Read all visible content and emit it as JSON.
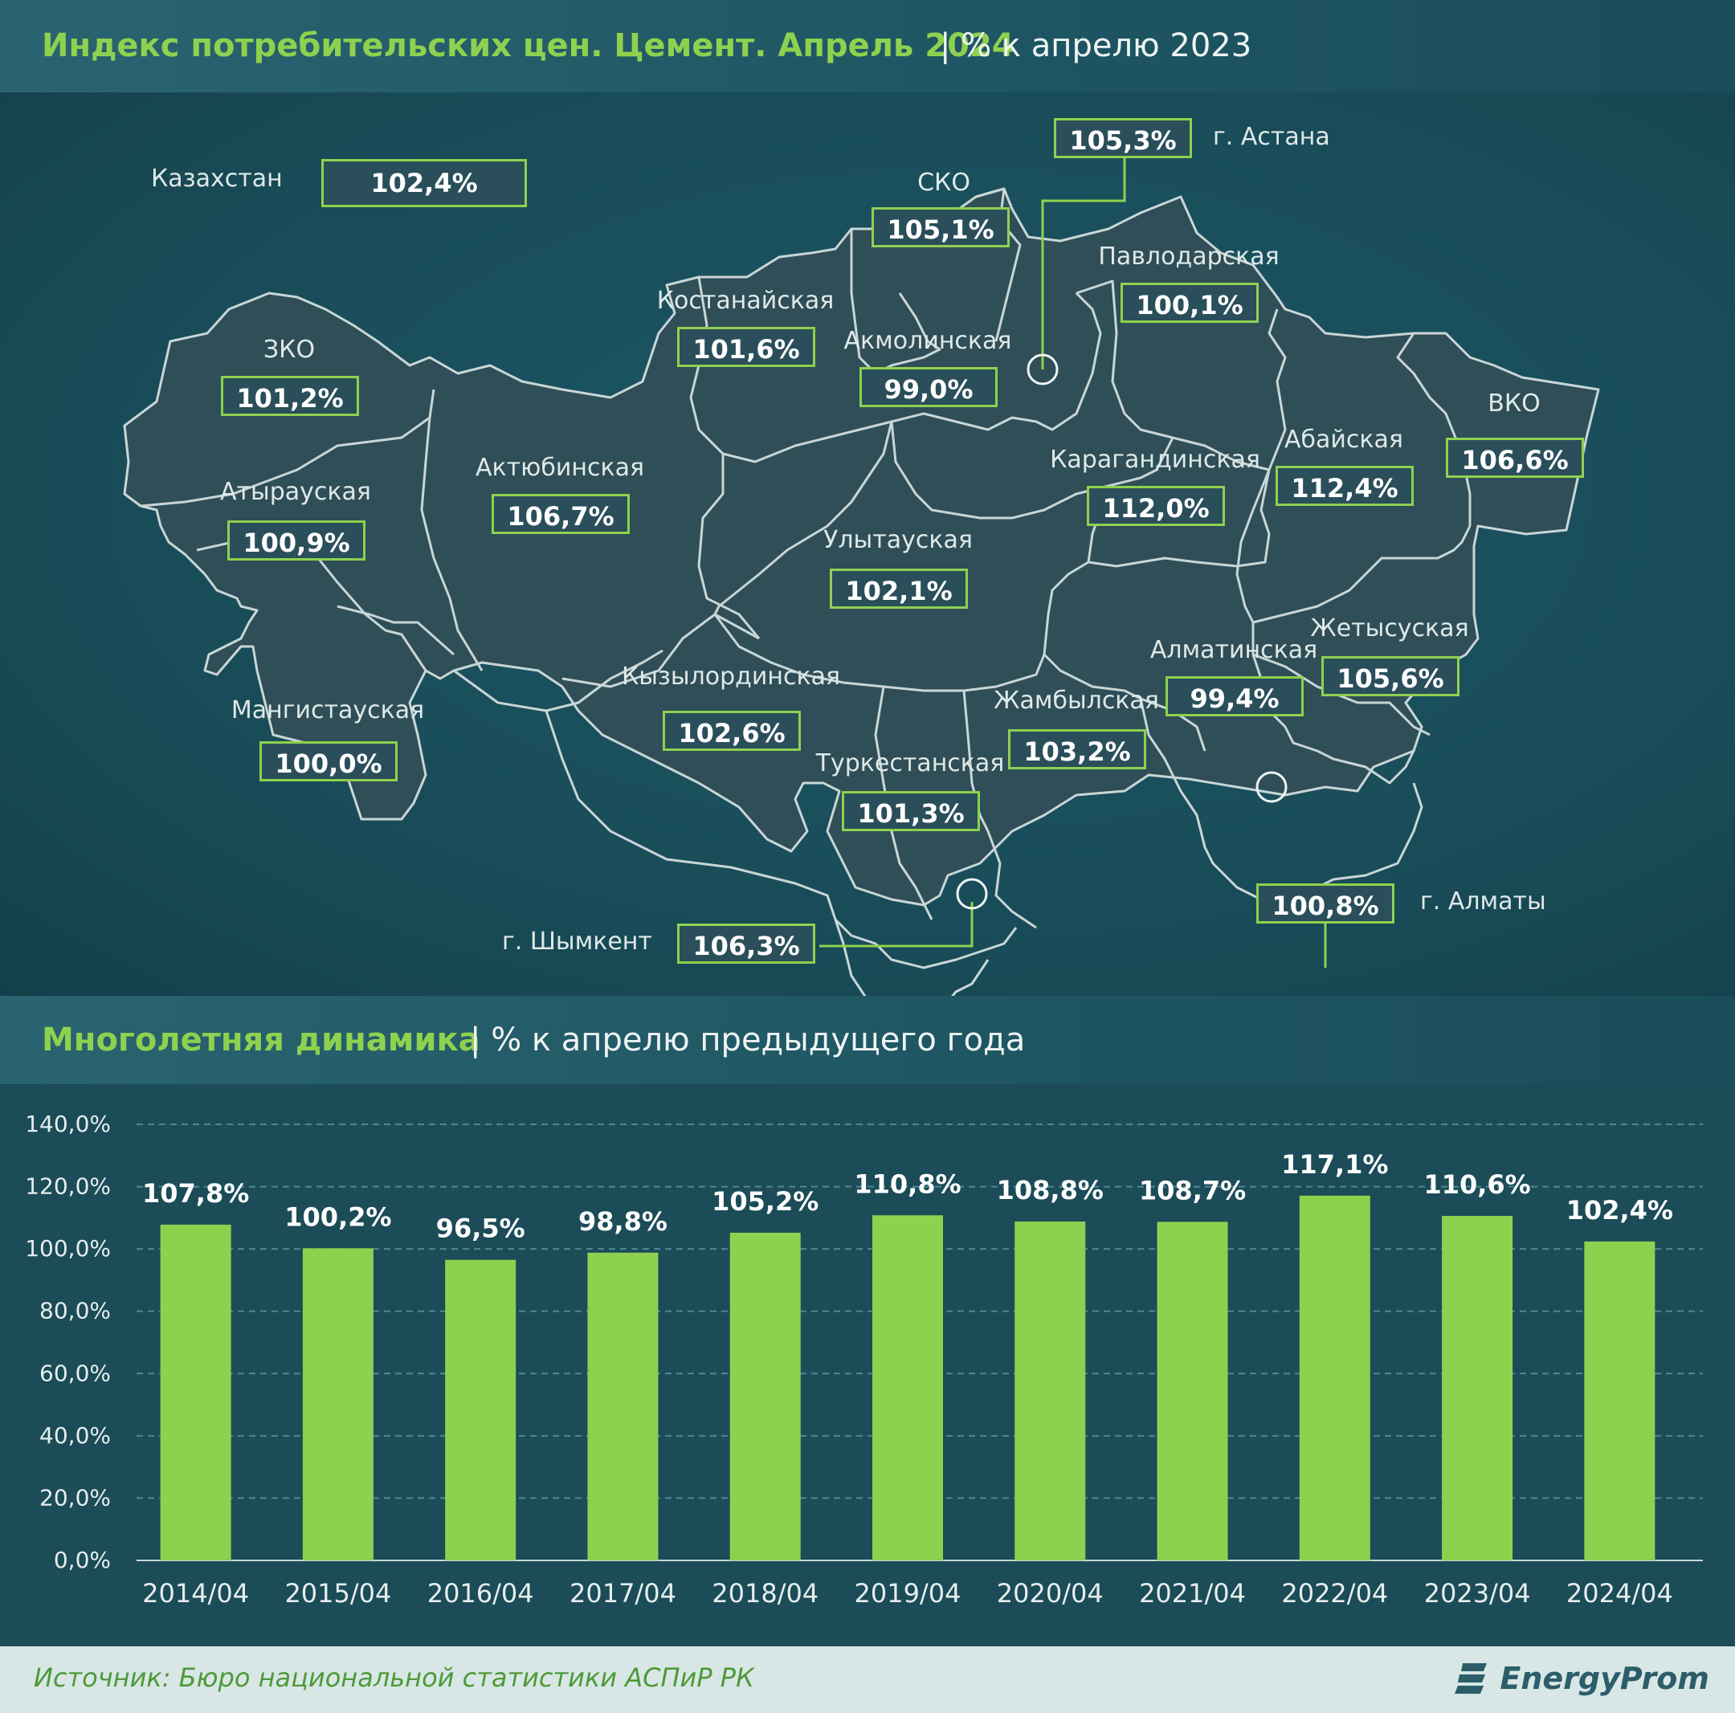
{
  "header_top": {
    "title": "Индекс потребительских цен. Цемент. Апрель 2024",
    "subtitle": "| % к апрелю 2023"
  },
  "map": {
    "kazakhstan": {
      "label": "Казахстан",
      "value": "102,4%"
    },
    "regions": {
      "astana": {
        "label": "г. Астана",
        "value": "105,3%"
      },
      "sko": {
        "label": "СКО",
        "value": "105,1%"
      },
      "pavlodar": {
        "label": "Павлодарская",
        "value": "100,1%"
      },
      "kostanay": {
        "label": "Костанайская",
        "value": "101,6%"
      },
      "akmola": {
        "label": "Акмолинская",
        "value": "99,0%"
      },
      "zko": {
        "label": "ЗКО",
        "value": "101,2%"
      },
      "atyrau": {
        "label": "Атырауская",
        "value": "100,9%"
      },
      "aktobe": {
        "label": "Актюбинская",
        "value": "106,7%"
      },
      "karaganda": {
        "label": "Карагандинская",
        "value": "112,0%"
      },
      "abai": {
        "label": "Абайская",
        "value": "112,4%"
      },
      "vko": {
        "label": "ВКО",
        "value": "106,6%"
      },
      "ulytau": {
        "label": "Улытауская",
        "value": "102,1%"
      },
      "zhetysu": {
        "label": "Жетысуская",
        "value": "105,6%"
      },
      "almaty_reg": {
        "label": "Алматинская",
        "value": "99,4%"
      },
      "kyzylorda": {
        "label": "Кызылординская",
        "value": "102,6%"
      },
      "zhambyl": {
        "label": "Жамбылская",
        "value": "103,2%"
      },
      "mangystau": {
        "label": "Мангистауская",
        "value": "100,0%"
      },
      "turkestan": {
        "label": "Туркестанская",
        "value": "101,3%"
      },
      "almaty_city": {
        "label": "г. Алматы",
        "value": "100,8%"
      },
      "shymkent": {
        "label": "г. Шымкент",
        "value": "106,3%"
      }
    }
  },
  "header_bottom": {
    "title": "Многолетняя динамика",
    "subtitle": "| % к апрелю предыдущего года"
  },
  "chart_data": {
    "type": "bar",
    "title": "Многолетняя динамика",
    "subtitle": "% к апрелю предыдущего года",
    "categories": [
      "2014/04",
      "2015/04",
      "2016/04",
      "2017/04",
      "2018/04",
      "2019/04",
      "2020/04",
      "2021/04",
      "2022/04",
      "2023/04",
      "2024/04"
    ],
    "values": [
      107.8,
      100.2,
      96.5,
      98.8,
      105.2,
      110.8,
      108.8,
      108.7,
      117.1,
      110.6,
      102.4
    ],
    "value_labels": [
      "107,8%",
      "100,2%",
      "96,5%",
      "98,8%",
      "105,2%",
      "110,8%",
      "108,8%",
      "108,7%",
      "117,1%",
      "110,6%",
      "102,4%"
    ],
    "ylim": [
      0,
      140
    ],
    "yticks": [
      "0,0%",
      "20,0%",
      "40,0%",
      "60,0%",
      "80,0%",
      "100,0%",
      "120,0%",
      "140,0%"
    ],
    "grid": true,
    "bar_color": "#8ed14f"
  },
  "footer": {
    "source": "Источник: Бюро национальной статистики АСПиР РК",
    "logo": "EnergyProm"
  },
  "colors": {
    "accent": "#8ed14f",
    "background": "#1c4f5b",
    "region_fill": "#2f4e57"
  }
}
